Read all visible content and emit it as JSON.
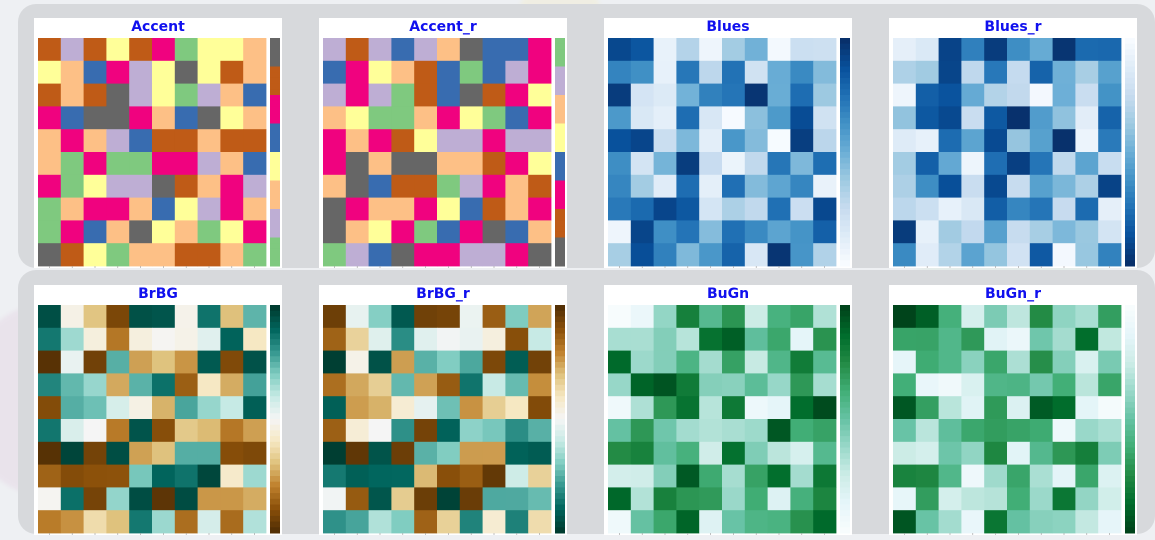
{
  "chart_data": [
    {
      "type": "heatmap",
      "title": "Accent",
      "colormap": "Accent",
      "reversed": false,
      "grid_size": [
        10,
        10
      ],
      "colorbar": true
    },
    {
      "type": "heatmap",
      "title": "Accent_r",
      "colormap": "Accent",
      "reversed": true,
      "grid_size": [
        10,
        10
      ],
      "colorbar": true
    },
    {
      "type": "heatmap",
      "title": "Blues",
      "colormap": "Blues",
      "reversed": false,
      "grid_size": [
        10,
        10
      ],
      "colorbar": true
    },
    {
      "type": "heatmap",
      "title": "Blues_r",
      "colormap": "Blues",
      "reversed": true,
      "grid_size": [
        10,
        10
      ],
      "colorbar": true
    },
    {
      "type": "heatmap",
      "title": "BrBG",
      "colormap": "BrBG",
      "reversed": false,
      "grid_size": [
        10,
        10
      ],
      "colorbar": true
    },
    {
      "type": "heatmap",
      "title": "BrBG_r",
      "colormap": "BrBG",
      "reversed": true,
      "grid_size": [
        10,
        10
      ],
      "colorbar": true
    },
    {
      "type": "heatmap",
      "title": "BuGn",
      "colormap": "BuGn",
      "reversed": false,
      "grid_size": [
        10,
        10
      ],
      "colorbar": true
    },
    {
      "type": "heatmap",
      "title": "BuGn_r",
      "colormap": "BuGn",
      "reversed": true,
      "grid_size": [
        10,
        10
      ],
      "colorbar": true
    }
  ],
  "theme": {
    "title_color": "#1010ee",
    "panel_color": "#d7d9dc",
    "card_color": "#ffffff",
    "colormaps": {
      "Accent": [
        "#7fc97f",
        "#beaed4",
        "#fdc086",
        "#ffff99",
        "#386cb0",
        "#f0027f",
        "#bf5b17",
        "#666666"
      ],
      "Blues": [
        "#f7fbff",
        "#deebf7",
        "#c6dbef",
        "#9ecae1",
        "#6baed6",
        "#4292c6",
        "#2171b5",
        "#08519c",
        "#08306b"
      ],
      "BrBG": [
        "#543005",
        "#8c510a",
        "#bf812d",
        "#dfc27d",
        "#f6e8c3",
        "#f5f5f5",
        "#c7eae5",
        "#80cdc1",
        "#35978f",
        "#01665e",
        "#003c30"
      ],
      "BuGn": [
        "#f7fcfd",
        "#e5f5f9",
        "#ccece6",
        "#99d8c9",
        "#66c2a4",
        "#41ae76",
        "#238b45",
        "#006d2c",
        "#00441b"
      ]
    }
  }
}
